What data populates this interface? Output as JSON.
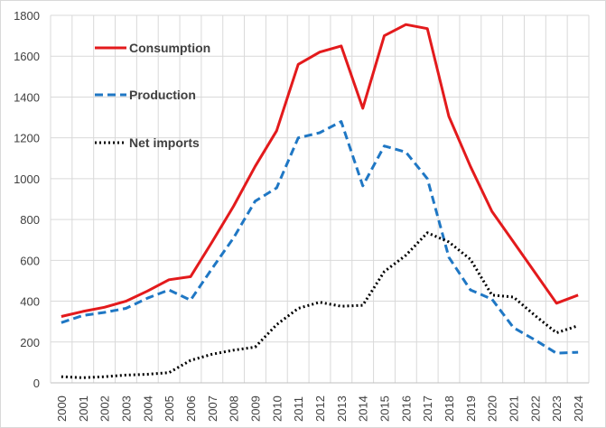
{
  "chart_data": {
    "type": "line",
    "title": "",
    "xlabel": "",
    "ylabel": "",
    "ylim": [
      0,
      1800
    ],
    "yticks": [
      0,
      200,
      400,
      600,
      800,
      1000,
      1200,
      1400,
      1600,
      1800
    ],
    "grid": "vertical and horizontal",
    "legend_position": "top-left",
    "categories": [
      "2000",
      "2001",
      "2002",
      "2003",
      "2004",
      "2005",
      "2006",
      "2007",
      "2008",
      "2009",
      "2010",
      "2011",
      "2012",
      "2013",
      "2014",
      "2015",
      "2016",
      "2017",
      "2018",
      "2019",
      "2020",
      "2021",
      "2022",
      "2023",
      "2024"
    ],
    "series": [
      {
        "name": "Consumption",
        "color": "#e31a1c",
        "dash": "solid",
        "values": [
          325,
          350,
          370,
          400,
          450,
          505,
          520,
          690,
          865,
          1060,
          1235,
          1560,
          1620,
          1650,
          1345,
          1700,
          1755,
          1735,
          1305,
          1060,
          840,
          690,
          540,
          390,
          430
        ]
      },
      {
        "name": "Production",
        "color": "#1f77c4",
        "dash": "dashed",
        "values": [
          295,
          330,
          345,
          365,
          415,
          455,
          405,
          560,
          710,
          890,
          955,
          1200,
          1225,
          1280,
          965,
          1160,
          1130,
          1000,
          615,
          455,
          410,
          270,
          210,
          145,
          150
        ]
      },
      {
        "name": "Net imports",
        "color": "#000000",
        "dash": "dotted",
        "values": [
          30,
          25,
          30,
          38,
          42,
          50,
          110,
          140,
          160,
          175,
          285,
          365,
          395,
          375,
          380,
          545,
          625,
          735,
          690,
          605,
          430,
          420,
          330,
          245,
          280
        ]
      }
    ]
  }
}
